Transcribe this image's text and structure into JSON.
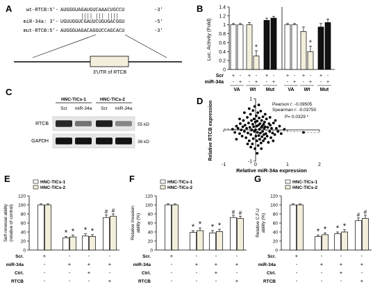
{
  "panel_letters": {
    "a": "A",
    "b": "B",
    "c": "C",
    "d": "D",
    "e": "E",
    "f": "F",
    "g": "G"
  },
  "panel_a": {
    "wt_label": "wt-RTCB:5'-",
    "wt_seq": "AUGGGUAGAUGUCAAACUGCCU",
    "wt_end": "-3'",
    "mir_label": "miR-34a: 3'-",
    "mir_seq": "UGUUGGUCGAUUCUGUGACGGU",
    "mir_end": "-5'",
    "mut_label": "mut-RTCB:5'-",
    "mut_seq": "AUGGGUAGACAGGUCCAGCACU",
    "mut_end": "-3'",
    "utr_label": "3'UTR of RTCB"
  },
  "panel_c": {
    "group1": "HNC-TICs-1",
    "group2": "HNC-TICs-2",
    "lanes": [
      "Scr",
      "miR-34a",
      "Scr",
      "miR-34a"
    ],
    "rows": [
      {
        "name": "RTCB",
        "kd": "55 kD"
      },
      {
        "name": "GAPDH",
        "kd": "36 kD"
      }
    ],
    "band_intensity": {
      "RTCB": [
        0.85,
        0.45,
        0.9,
        0.35
      ],
      "GAPDH": [
        0.95,
        0.95,
        0.95,
        0.95
      ]
    }
  },
  "colors": {
    "white_bar": "#ffffff",
    "cream_bar": "#f3efdc",
    "black_bar": "#111111",
    "axis": "#000000"
  },
  "chart_data": [
    {
      "id": "B",
      "type": "bar",
      "ylabel": "Luc. Activity (Fold)",
      "ylim": [
        0,
        1.4
      ],
      "yticks": [
        "0",
        "0.2",
        "0.4",
        "0.6",
        "0.8",
        "1",
        "1.2",
        "1.4"
      ],
      "row_labels": [
        "Scr",
        "miR-34a"
      ],
      "groups": [
        {
          "label": "VA",
          "bars": [
            {
              "value": 1.0,
              "err": 0.03,
              "color": "white",
              "scr": "+",
              "mir": "-"
            },
            {
              "value": 1.0,
              "err": 0.03,
              "color": "white",
              "scr": "-",
              "mir": "+"
            }
          ]
        },
        {
          "label": "Wt",
          "bars": [
            {
              "value": 1.0,
              "err": 0.05,
              "color": "cream",
              "scr": "+",
              "mir": "-"
            },
            {
              "value": 0.3,
              "err": 0.12,
              "color": "cream",
              "scr": "-",
              "mir": "+",
              "mark": "*"
            }
          ]
        },
        {
          "label": "Mut",
          "bars": [
            {
              "value": 1.1,
              "err": 0.05,
              "color": "black",
              "scr": "+",
              "mir": "-"
            },
            {
              "value": 1.15,
              "err": 0.04,
              "color": "black",
              "scr": "-",
              "mir": "+"
            }
          ]
        },
        {
          "label": "VA",
          "bars": [
            {
              "value": 1.0,
              "err": 0.03,
              "color": "white",
              "scr": "+",
              "mir": "-"
            },
            {
              "value": 1.0,
              "err": 0.03,
              "color": "white",
              "scr": "-",
              "mir": "+"
            }
          ]
        },
        {
          "label": "Wt",
          "bars": [
            {
              "value": 0.85,
              "err": 0.1,
              "color": "cream",
              "scr": "+",
              "mir": "-"
            },
            {
              "value": 0.4,
              "err": 0.12,
              "color": "cream",
              "scr": "-",
              "mir": "+",
              "mark": "*"
            }
          ]
        },
        {
          "label": "Mut",
          "bars": [
            {
              "value": 0.95,
              "err": 0.08,
              "color": "black",
              "scr": "+",
              "mir": "-"
            },
            {
              "value": 1.05,
              "err": 0.08,
              "color": "black",
              "scr": "-",
              "mir": "+"
            }
          ]
        }
      ]
    },
    {
      "id": "D",
      "type": "scatter",
      "xlabel": "Relative miR-34a expression",
      "ylabel": "Relative RTCB expression",
      "xlim": [
        -1,
        2
      ],
      "ylim": [
        -1,
        1
      ],
      "xticks": [
        -1,
        0,
        1,
        2
      ],
      "yticks": [
        -1,
        0,
        1
      ],
      "annotations": [
        "Pearson r: -0.09505",
        "Spearman r: -0.03750",
        "P= 0.0329 *"
      ],
      "trend": {
        "x": [
          -1,
          2
        ],
        "y": [
          0.04,
          -0.09
        ]
      },
      "points": [
        [
          -0.72,
          0.02
        ],
        [
          -0.65,
          -0.08
        ],
        [
          -0.6,
          0.12
        ],
        [
          -0.55,
          0.05
        ],
        [
          -0.5,
          -0.12
        ],
        [
          -0.48,
          0.2
        ],
        [
          -0.45,
          0.0
        ],
        [
          -0.42,
          -0.2
        ],
        [
          -0.4,
          0.1
        ],
        [
          -0.38,
          0.3
        ],
        [
          -0.35,
          -0.05
        ],
        [
          -0.33,
          0.15
        ],
        [
          -0.3,
          -0.25
        ],
        [
          -0.28,
          0.05
        ],
        [
          -0.26,
          0.4
        ],
        [
          -0.24,
          -0.1
        ],
        [
          -0.22,
          0.22
        ],
        [
          -0.2,
          -0.35
        ],
        [
          -0.18,
          0.08
        ],
        [
          -0.16,
          0.5
        ],
        [
          -0.15,
          -0.15
        ],
        [
          -0.13,
          0.3
        ],
        [
          -0.12,
          0.0
        ],
        [
          -0.1,
          -0.45
        ],
        [
          -0.09,
          0.18
        ],
        [
          -0.08,
          0.62
        ],
        [
          -0.07,
          -0.28
        ],
        [
          -0.06,
          0.1
        ],
        [
          -0.05,
          0.35
        ],
        [
          -0.04,
          -0.05
        ],
        [
          -0.03,
          0.75
        ],
        [
          -0.02,
          -0.6
        ],
        [
          -0.01,
          0.25
        ],
        [
          0.0,
          0.0
        ],
        [
          0.01,
          -0.2
        ],
        [
          0.02,
          0.45
        ],
        [
          0.03,
          0.12
        ],
        [
          0.04,
          -0.35
        ],
        [
          0.05,
          0.28
        ],
        [
          0.06,
          -0.08
        ],
        [
          0.07,
          0.55
        ],
        [
          0.08,
          -0.5
        ],
        [
          0.09,
          0.15
        ],
        [
          0.1,
          -0.18
        ],
        [
          0.11,
          0.38
        ],
        [
          0.12,
          0.02
        ],
        [
          0.13,
          -0.3
        ],
        [
          0.14,
          0.2
        ],
        [
          0.15,
          -0.1
        ],
        [
          0.16,
          0.6
        ],
        [
          0.17,
          -0.42
        ],
        [
          0.18,
          0.08
        ],
        [
          0.19,
          0.3
        ],
        [
          0.2,
          -0.22
        ],
        [
          0.21,
          0.12
        ],
        [
          0.22,
          -0.05
        ],
        [
          0.23,
          0.42
        ],
        [
          0.24,
          -0.35
        ],
        [
          0.25,
          0.18
        ],
        [
          0.26,
          -0.15
        ],
        [
          0.27,
          0.05
        ],
        [
          0.28,
          0.25
        ],
        [
          0.29,
          -0.28
        ],
        [
          0.3,
          0.1
        ],
        [
          0.32,
          -0.12
        ],
        [
          0.34,
          0.35
        ],
        [
          0.36,
          -0.2
        ],
        [
          0.38,
          0.08
        ],
        [
          0.4,
          -0.4
        ],
        [
          0.42,
          0.2
        ],
        [
          0.44,
          -0.05
        ],
        [
          0.46,
          0.15
        ],
        [
          0.48,
          -0.25
        ],
        [
          0.5,
          0.05
        ],
        [
          0.53,
          -0.1
        ],
        [
          0.56,
          0.22
        ],
        [
          0.6,
          -0.15
        ],
        [
          0.65,
          0.05
        ],
        [
          0.7,
          -0.05
        ],
        [
          0.75,
          0.12
        ],
        [
          0.8,
          -0.12
        ],
        [
          0.9,
          0.02
        ],
        [
          -0.35,
          0.55
        ],
        [
          -0.2,
          0.68
        ],
        [
          0.1,
          0.8
        ],
        [
          0.05,
          -0.75
        ],
        [
          -0.15,
          -0.55
        ],
        [
          0.3,
          0.5
        ],
        [
          0.45,
          0.4
        ],
        [
          -0.5,
          0.35
        ],
        [
          -0.6,
          -0.3
        ],
        [
          0.55,
          -0.35
        ],
        [
          0.62,
          0.3
        ],
        [
          -0.25,
          -0.45
        ],
        [
          0.18,
          -0.6
        ],
        [
          1.5,
          -0.08
        ]
      ]
    },
    {
      "id": "E",
      "type": "bar",
      "ylabel": "Self-renewal ability\n(relative of control)",
      "ylim": [
        0,
        120
      ],
      "yticks": [
        "0",
        "20",
        "40",
        "60",
        "80",
        "100",
        "120"
      ],
      "legend": [
        "HNC-TICs-1",
        "HNC-TICs-2"
      ],
      "row_labels": [
        "Scr.",
        "miR-34a",
        "Ctrl.",
        "RTCB"
      ],
      "conditions": [
        [
          "+",
          "-",
          "-",
          "-"
        ],
        [
          "-",
          "+",
          "+",
          "+"
        ],
        [
          "-",
          "-",
          "+",
          "-"
        ],
        [
          "-",
          "-",
          "-",
          "+"
        ]
      ],
      "series": [
        {
          "name": "HNC-TICs-1",
          "values": [
            100,
            27,
            31,
            72
          ],
          "errors": [
            2,
            3,
            5,
            6
          ]
        },
        {
          "name": "HNC-TICs-2",
          "values": [
            100,
            29,
            30,
            75
          ],
          "errors": [
            2,
            4,
            4,
            5
          ]
        }
      ],
      "marks": [
        [
          "",
          ""
        ],
        [
          "*",
          "*"
        ],
        [
          "*",
          "*"
        ],
        [
          "#",
          "#"
        ]
      ]
    },
    {
      "id": "F",
      "type": "bar",
      "ylabel": "Relative Invasion\nability (%)",
      "ylim": [
        0,
        120
      ],
      "yticks": [
        "0",
        "20",
        "40",
        "60",
        "80",
        "100",
        "120"
      ],
      "legend": [
        "HNC-TICs-1",
        "HNC-TICs-2"
      ],
      "row_labels": [
        "Scr.",
        "miR-34a",
        "Ctrl.",
        "RTCB"
      ],
      "conditions": [
        [
          "+",
          "-",
          "-",
          "-"
        ],
        [
          "-",
          "+",
          "+",
          "+"
        ],
        [
          "-",
          "-",
          "+",
          "-"
        ],
        [
          "-",
          "-",
          "-",
          "+"
        ]
      ],
      "series": [
        {
          "name": "HNC-TICs-1",
          "values": [
            100,
            39,
            38,
            72
          ],
          "errors": [
            2,
            4,
            5,
            5
          ]
        },
        {
          "name": "HNC-TICs-2",
          "values": [
            100,
            43,
            41,
            70
          ],
          "errors": [
            2,
            6,
            5,
            5
          ]
        }
      ],
      "marks": [
        [
          "",
          ""
        ],
        [
          "*",
          "*"
        ],
        [
          "*",
          "*"
        ],
        [
          "#",
          "#"
        ]
      ]
    },
    {
      "id": "G",
      "type": "bar",
      "ylabel": "Relative C.F.U\nability (%)",
      "ylim": [
        0,
        120
      ],
      "yticks": [
        "0",
        "20",
        "40",
        "60",
        "80",
        "100",
        "120"
      ],
      "legend": [
        "HNC-TICs-1",
        "HNC-TICs-2"
      ],
      "row_labels": [
        "Scr.",
        "miR-34a",
        "Ctrl.",
        "RTCB"
      ],
      "conditions": [
        [
          "+",
          "-",
          "-",
          "-"
        ],
        [
          "-",
          "+",
          "+",
          "+"
        ],
        [
          "-",
          "-",
          "+",
          "-"
        ],
        [
          "-",
          "-",
          "-",
          "+"
        ]
      ],
      "series": [
        {
          "name": "HNC-TICs-1",
          "values": [
            100,
            30,
            36,
            65
          ],
          "errors": [
            2,
            3,
            4,
            6
          ]
        },
        {
          "name": "HNC-TICs-2",
          "values": [
            100,
            34,
            40,
            70
          ],
          "errors": [
            2,
            4,
            5,
            7
          ]
        }
      ],
      "marks": [
        [
          "",
          ""
        ],
        [
          "*",
          "*"
        ],
        [
          "*",
          "*"
        ],
        [
          "#",
          "#"
        ]
      ]
    }
  ]
}
